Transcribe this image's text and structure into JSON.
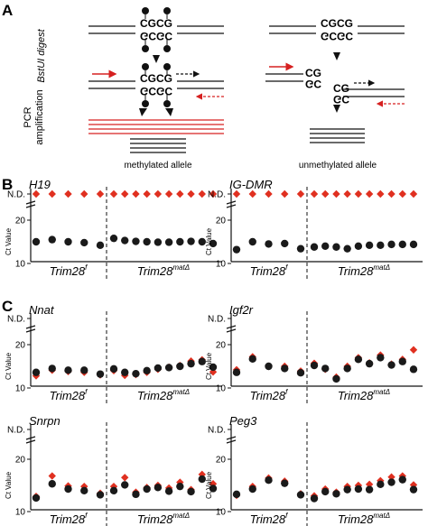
{
  "panels": {
    "a": {
      "letter": "A",
      "bstui_label": "BstUI digest",
      "pcr_label_1": "PCR",
      "pcr_label_2": "amplification",
      "top_seq": "CGCG",
      "bottom_seq": "GCGC",
      "split_top": "CG",
      "split_bottom": "GC",
      "methylated_caption": "methylated allele",
      "unmethylated_caption": "unmethylated allele"
    },
    "b": {
      "letter": "B"
    },
    "c": {
      "letter": "C"
    }
  },
  "axis": {
    "nd_label": "N.D.",
    "ylabel": "Ct Value",
    "tick_20": "20",
    "tick_10": "10",
    "group_flox": "Trim28",
    "group_flox_sup": "f",
    "group_mat": "Trim28",
    "group_mat_sup": "matΔ"
  },
  "colors": {
    "black_marker": "#1a1a1a",
    "red_marker": "#e03020",
    "red_arrow": "#d62020"
  },
  "chart_data": [
    {
      "type": "scatter",
      "title": "H19",
      "ylim": [
        10,
        22
      ],
      "groups": [
        "Trim28f",
        "Trim28matΔ"
      ],
      "series": [
        {
          "name": "",
          "marker": "circle",
          "color": "#1a1a1a",
          "values": [
            15,
            15.5,
            15,
            14.8,
            14.2,
            15.8,
            15.3,
            15.1,
            15.0,
            14.9,
            14.9,
            15.0,
            15.1,
            15.0,
            14.6
          ]
        },
        {
          "name": "",
          "marker": "diamond",
          "color": "#e03020",
          "values": [
            "N.D.",
            "N.D.",
            "N.D.",
            "N.D.",
            "N.D.",
            "N.D.",
            "N.D.",
            "N.D.",
            "N.D.",
            "N.D.",
            "N.D.",
            "N.D.",
            "N.D.",
            "N.D.",
            "N.D."
          ]
        }
      ]
    },
    {
      "type": "scatter",
      "title": "IG-DMR",
      "ylim": [
        10,
        22
      ],
      "groups": [
        "Trim28f",
        "Trim28matΔ"
      ],
      "series": [
        {
          "name": "",
          "marker": "circle",
          "color": "#1a1a1a",
          "values": [
            13.2,
            15.0,
            14.5,
            14.6,
            13.4,
            13.8,
            14.0,
            13.8,
            13.4,
            14.0,
            14.2,
            14.2,
            14.4,
            14.4,
            14.4
          ]
        },
        {
          "name": "",
          "marker": "diamond",
          "color": "#e03020",
          "values": [
            "N.D.",
            "N.D.",
            "N.D.",
            "N.D.",
            "N.D.",
            "N.D.",
            "N.D.",
            "N.D.",
            "N.D.",
            "N.D.",
            "N.D.",
            "N.D.",
            "N.D.",
            "N.D.",
            "N.D."
          ]
        }
      ]
    },
    {
      "type": "scatter",
      "title": "Nnat",
      "ylim": [
        10,
        22
      ],
      "groups": [
        "Trim28f",
        "Trim28matΔ"
      ],
      "series": [
        {
          "name": "",
          "marker": "circle",
          "color": "#1a1a1a",
          "values": [
            13.6,
            14.5,
            14.1,
            14.1,
            13.2,
            14.4,
            13.6,
            13.3,
            14.0,
            14.6,
            14.7,
            15.0,
            15.6,
            16.1,
            14.8
          ]
        },
        {
          "name": "",
          "marker": "diamond",
          "color": "#e03020",
          "values": [
            12.8,
            14.1,
            13.8,
            13.6,
            13.0,
            14.0,
            12.9,
            13.1,
            13.6,
            14.3,
            14.8,
            15.2,
            16.2,
            16.5,
            13.7
          ]
        }
      ]
    },
    {
      "type": "scatter",
      "title": "Igf2r",
      "ylim": [
        10,
        22
      ],
      "groups": [
        "Trim28f",
        "Trim28matΔ"
      ],
      "series": [
        {
          "name": "",
          "marker": "circle",
          "color": "#1a1a1a",
          "values": [
            13.6,
            16.7,
            15.0,
            14.5,
            13.5,
            15.2,
            14.5,
            12.1,
            14.5,
            16.6,
            15.6,
            17.0,
            15.3,
            16.1,
            14.3
          ]
        },
        {
          "name": "",
          "marker": "diamond",
          "color": "#e03020",
          "values": [
            14.2,
            17.2,
            15.0,
            15.0,
            13.9,
            15.7,
            14.3,
            12.5,
            15.0,
            17.0,
            15.8,
            17.6,
            15.5,
            16.6,
            18.8
          ]
        }
      ]
    },
    {
      "type": "scatter",
      "title": "Snrpn",
      "ylim": [
        10,
        22
      ],
      "groups": [
        "Trim28f",
        "Trim28matΔ"
      ],
      "series": [
        {
          "name": "",
          "marker": "circle",
          "color": "#1a1a1a",
          "values": [
            12.6,
            15.3,
            14.3,
            14.0,
            13.2,
            14.0,
            15.1,
            13.3,
            14.3,
            14.6,
            13.9,
            14.8,
            13.8,
            16.2,
            14.4
          ]
        },
        {
          "name": "",
          "marker": "diamond",
          "color": "#e03020",
          "values": [
            12.9,
            16.8,
            14.9,
            14.8,
            13.5,
            14.8,
            16.5,
            13.7,
            14.6,
            15.0,
            14.5,
            15.6,
            14.2,
            17.1,
            15.3
          ]
        }
      ]
    },
    {
      "type": "scatter",
      "title": "Peg3",
      "ylim": [
        10,
        22
      ],
      "groups": [
        "Trim28f",
        "Trim28matΔ"
      ],
      "series": [
        {
          "name": "",
          "marker": "circle",
          "color": "#1a1a1a",
          "values": [
            13.3,
            14.3,
            16.0,
            15.4,
            13.2,
            12.5,
            13.8,
            13.4,
            14.2,
            14.3,
            14.2,
            15.2,
            15.6,
            16.1,
            14.2
          ]
        },
        {
          "name": "",
          "marker": "diamond",
          "color": "#e03020",
          "values": [
            13.1,
            14.8,
            16.4,
            15.8,
            13.4,
            13.0,
            14.3,
            13.7,
            14.8,
            15.0,
            15.2,
            15.9,
            16.6,
            16.8,
            15.1
          ]
        }
      ]
    }
  ]
}
